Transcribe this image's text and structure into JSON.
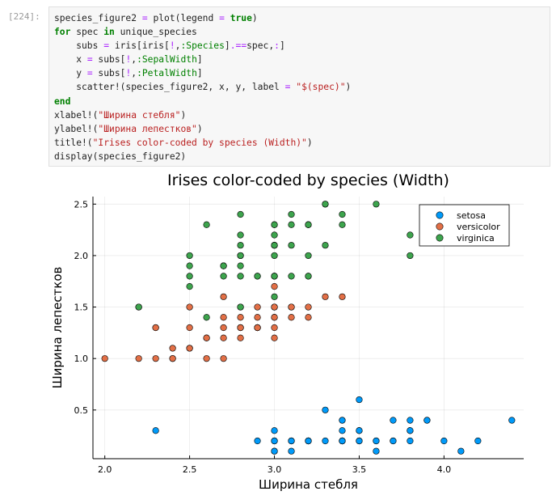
{
  "cell": {
    "prompt": "[224]:",
    "code_lines": [
      [
        {
          "t": "plain",
          "s": "species_figure2 "
        },
        {
          "t": "op",
          "s": "="
        },
        {
          "t": "plain",
          "s": " plot(legend "
        },
        {
          "t": "op",
          "s": "="
        },
        {
          "t": "plain",
          "s": " "
        },
        {
          "t": "kw",
          "s": "true"
        },
        {
          "t": "plain",
          "s": ")"
        }
      ],
      [
        {
          "t": "kw",
          "s": "for"
        },
        {
          "t": "plain",
          "s": " spec "
        },
        {
          "t": "kw",
          "s": "in"
        },
        {
          "t": "plain",
          "s": " unique_species"
        }
      ],
      [
        {
          "t": "plain",
          "s": "    subs "
        },
        {
          "t": "op",
          "s": "="
        },
        {
          "t": "plain",
          "s": " iris[iris["
        },
        {
          "t": "op",
          "s": "!"
        },
        {
          "t": "plain",
          "s": ","
        },
        {
          "t": "sym",
          "s": ":Species"
        },
        {
          "t": "plain",
          "s": "]"
        },
        {
          "t": "op",
          "s": ".=="
        },
        {
          "t": "plain",
          "s": "spec,"
        },
        {
          "t": "op",
          "s": ":"
        },
        {
          "t": "plain",
          "s": "]"
        }
      ],
      [
        {
          "t": "plain",
          "s": "    x "
        },
        {
          "t": "op",
          "s": "="
        },
        {
          "t": "plain",
          "s": " subs["
        },
        {
          "t": "op",
          "s": "!"
        },
        {
          "t": "plain",
          "s": ","
        },
        {
          "t": "sym",
          "s": ":SepalWidth"
        },
        {
          "t": "plain",
          "s": "]"
        }
      ],
      [
        {
          "t": "plain",
          "s": "    y "
        },
        {
          "t": "op",
          "s": "="
        },
        {
          "t": "plain",
          "s": " subs["
        },
        {
          "t": "op",
          "s": "!"
        },
        {
          "t": "plain",
          "s": ","
        },
        {
          "t": "sym",
          "s": ":PetalWidth"
        },
        {
          "t": "plain",
          "s": "]"
        }
      ],
      [
        {
          "t": "plain",
          "s": "    scatter!(species_figure2, x, y, label "
        },
        {
          "t": "op",
          "s": "="
        },
        {
          "t": "plain",
          "s": " "
        },
        {
          "t": "str",
          "s": "\"$(spec)\""
        },
        {
          "t": "plain",
          "s": ")"
        }
      ],
      [
        {
          "t": "kw",
          "s": "end"
        }
      ],
      [
        {
          "t": "plain",
          "s": "xlabel!("
        },
        {
          "t": "str",
          "s": "\"Ширина стебля\""
        },
        {
          "t": "plain",
          "s": ")"
        }
      ],
      [
        {
          "t": "plain",
          "s": "ylabel!("
        },
        {
          "t": "str",
          "s": "\"Ширина лепестков\""
        },
        {
          "t": "plain",
          "s": ")"
        }
      ],
      [
        {
          "t": "plain",
          "s": "title!("
        },
        {
          "t": "str",
          "s": "\"Irises color-coded by species (Width)\""
        },
        {
          "t": "plain",
          "s": ")"
        }
      ],
      [
        {
          "t": "plain",
          "s": "display(species_figure2)"
        }
      ]
    ]
  },
  "chart_data": {
    "type": "scatter",
    "title": "Irises color-coded by species (Width)",
    "xlabel": "Ширина стебля",
    "ylabel": "Ширина лепестков",
    "xlim": [
      1.93,
      4.47
    ],
    "ylim": [
      0.027,
      2.573
    ],
    "xticks": [
      2.0,
      2.5,
      3.0,
      3.5,
      4.0
    ],
    "yticks": [
      0.5,
      1.0,
      1.5,
      2.0,
      2.5
    ],
    "grid": true,
    "legend_position": "top-right",
    "series": [
      {
        "name": "setosa",
        "color": "#009af9",
        "x": [
          3.5,
          3.0,
          3.2,
          3.1,
          3.6,
          3.9,
          3.4,
          3.4,
          2.9,
          3.1,
          3.7,
          3.4,
          3.0,
          3.0,
          4.0,
          4.4,
          3.9,
          3.5,
          3.8,
          3.8,
          3.4,
          3.7,
          3.6,
          3.3,
          3.4,
          3.0,
          3.4,
          3.5,
          3.4,
          3.2,
          3.1,
          3.4,
          4.1,
          4.2,
          3.1,
          3.2,
          3.5,
          3.6,
          3.0,
          3.4,
          3.5,
          2.3,
          3.2,
          3.5,
          3.8,
          3.0,
          3.8,
          3.2,
          3.7,
          3.3
        ],
        "y": [
          0.2,
          0.2,
          0.2,
          0.2,
          0.2,
          0.4,
          0.3,
          0.2,
          0.2,
          0.1,
          0.2,
          0.2,
          0.1,
          0.1,
          0.2,
          0.4,
          0.4,
          0.3,
          0.3,
          0.3,
          0.2,
          0.4,
          0.2,
          0.5,
          0.2,
          0.2,
          0.4,
          0.2,
          0.2,
          0.2,
          0.2,
          0.4,
          0.1,
          0.2,
          0.2,
          0.2,
          0.2,
          0.1,
          0.2,
          0.2,
          0.3,
          0.3,
          0.2,
          0.6,
          0.4,
          0.3,
          0.2,
          0.2,
          0.2,
          0.2
        ]
      },
      {
        "name": "versicolor",
        "color": "#e26f46",
        "x": [
          3.2,
          3.2,
          3.1,
          2.3,
          2.8,
          2.8,
          3.3,
          2.4,
          2.9,
          2.7,
          2.0,
          3.0,
          2.2,
          2.9,
          2.9,
          3.1,
          3.0,
          2.7,
          2.2,
          2.5,
          3.2,
          2.8,
          2.5,
          2.8,
          2.9,
          3.0,
          2.8,
          3.0,
          2.9,
          2.6,
          2.4,
          2.4,
          2.7,
          2.7,
          3.0,
          3.4,
          3.1,
          2.3,
          3.0,
          2.5,
          2.6,
          3.0,
          2.6,
          2.3,
          2.7,
          3.0,
          2.9,
          2.9,
          2.5,
          2.8
        ],
        "y": [
          1.4,
          1.5,
          1.5,
          1.3,
          1.5,
          1.3,
          1.6,
          1.0,
          1.3,
          1.4,
          1.0,
          1.5,
          1.0,
          1.4,
          1.3,
          1.4,
          1.5,
          1.0,
          1.5,
          1.1,
          1.8,
          1.3,
          1.5,
          1.2,
          1.3,
          1.4,
          1.4,
          1.7,
          1.5,
          1.0,
          1.1,
          1.0,
          1.2,
          1.6,
          1.5,
          1.6,
          1.5,
          1.3,
          1.3,
          1.3,
          1.2,
          1.4,
          1.2,
          1.0,
          1.3,
          1.2,
          1.3,
          1.3,
          1.1,
          1.3
        ]
      },
      {
        "name": "virginica",
        "color": "#3da44d",
        "x": [
          3.3,
          2.7,
          3.0,
          2.9,
          3.0,
          3.0,
          2.5,
          2.9,
          2.5,
          3.6,
          3.2,
          2.7,
          3.0,
          2.5,
          2.8,
          3.2,
          3.0,
          3.8,
          2.6,
          2.2,
          3.2,
          2.8,
          2.8,
          2.7,
          3.3,
          3.2,
          2.8,
          3.0,
          2.8,
          3.0,
          2.8,
          3.8,
          2.8,
          2.8,
          2.6,
          3.0,
          3.4,
          3.1,
          3.0,
          3.1,
          3.1,
          3.1,
          2.7,
          3.2,
          3.3,
          3.0,
          2.5,
          3.0,
          3.4,
          3.0
        ],
        "y": [
          2.5,
          1.9,
          2.1,
          1.8,
          2.2,
          2.1,
          1.7,
          1.8,
          1.8,
          2.5,
          2.0,
          1.9,
          2.1,
          2.0,
          2.4,
          2.3,
          1.8,
          2.2,
          2.3,
          1.5,
          2.3,
          2.0,
          2.0,
          1.8,
          2.1,
          1.8,
          1.8,
          1.8,
          2.1,
          1.6,
          1.9,
          2.0,
          2.2,
          1.5,
          1.4,
          2.3,
          2.4,
          1.8,
          1.8,
          2.1,
          2.4,
          2.3,
          1.9,
          2.3,
          2.5,
          2.3,
          1.9,
          2.0,
          2.3,
          1.8
        ]
      }
    ]
  }
}
